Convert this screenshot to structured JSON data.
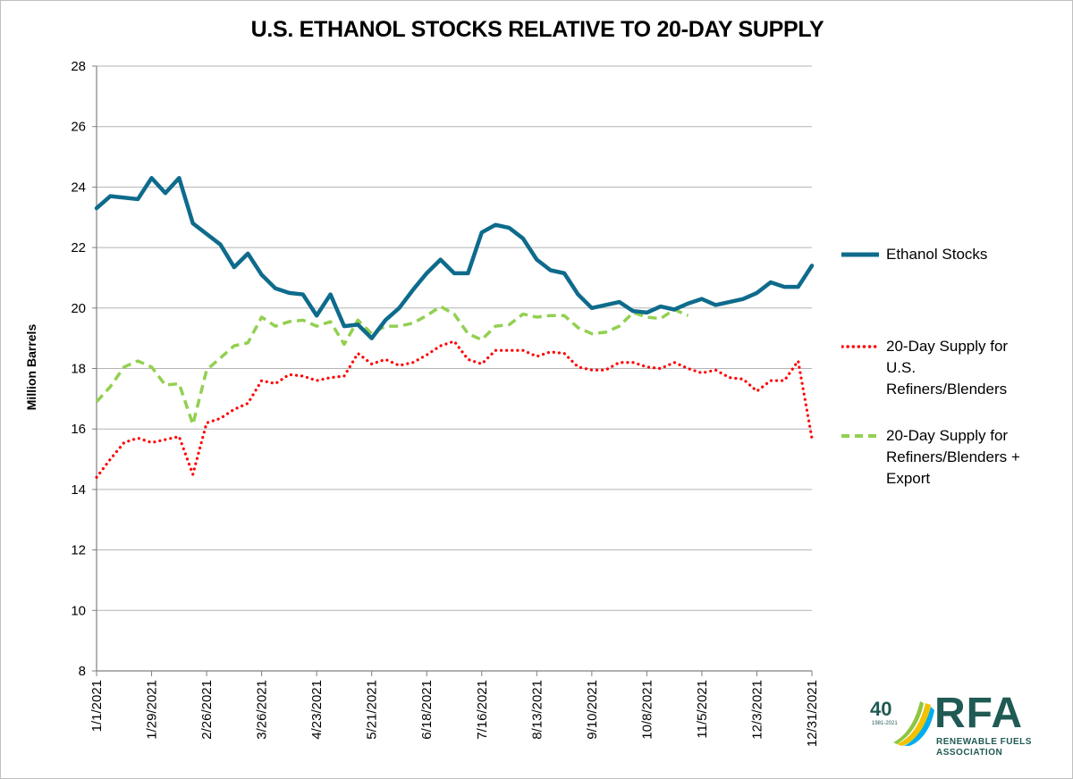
{
  "chart_data": {
    "type": "line",
    "title": "U.S. ETHANOL STOCKS RELATIVE TO 20-DAY SUPPLY",
    "ylabel": "Million Barrels",
    "xlabel": "",
    "ylim": [
      8,
      28
    ],
    "yticks": [
      8,
      10,
      12,
      14,
      16,
      18,
      20,
      22,
      24,
      26,
      28
    ],
    "grid": true,
    "legend_position": "right",
    "x": [
      "1/1/2021",
      "1/8/2021",
      "1/15/2021",
      "1/22/2021",
      "1/29/2021",
      "2/5/2021",
      "2/12/2021",
      "2/19/2021",
      "2/26/2021",
      "3/5/2021",
      "3/12/2021",
      "3/19/2021",
      "3/26/2021",
      "4/2/2021",
      "4/9/2021",
      "4/16/2021",
      "4/23/2021",
      "4/30/2021",
      "5/7/2021",
      "5/14/2021",
      "5/21/2021",
      "5/28/2021",
      "6/4/2021",
      "6/11/2021",
      "6/18/2021",
      "6/25/2021",
      "7/2/2021",
      "7/9/2021",
      "7/16/2021",
      "7/23/2021",
      "7/30/2021",
      "8/6/2021",
      "8/13/2021",
      "8/20/2021",
      "8/27/2021",
      "9/3/2021",
      "9/10/2021",
      "9/17/2021",
      "9/24/2021",
      "10/1/2021",
      "10/8/2021",
      "10/15/2021",
      "10/22/2021",
      "10/29/2021",
      "11/5/2021",
      "11/12/2021",
      "11/19/2021",
      "11/26/2021",
      "12/3/2021",
      "12/10/2021",
      "12/17/2021",
      "12/24/2021",
      "12/31/2021"
    ],
    "x_tick_labels": [
      "1/1/2021",
      "1/29/2021",
      "2/26/2021",
      "3/26/2021",
      "4/23/2021",
      "5/21/2021",
      "6/18/2021",
      "7/16/2021",
      "8/13/2021",
      "9/10/2021",
      "10/8/2021",
      "11/5/2021",
      "12/3/2021",
      "12/31/2021"
    ],
    "series": [
      {
        "name": "Ethanol Stocks",
        "color": "#0e6b8c",
        "style": "solid",
        "values": [
          23.3,
          23.7,
          23.65,
          23.6,
          24.3,
          23.8,
          24.3,
          22.8,
          22.45,
          22.1,
          21.35,
          21.8,
          21.1,
          20.65,
          20.5,
          20.45,
          19.75,
          20.45,
          19.4,
          19.45,
          19.0,
          19.6,
          20.0,
          20.6,
          21.15,
          21.6,
          21.15,
          21.15,
          22.5,
          22.75,
          22.65,
          22.3,
          21.6,
          21.25,
          21.15,
          20.45,
          20.0,
          20.1,
          20.2,
          19.9,
          19.85,
          20.05,
          19.95,
          20.15,
          20.3,
          20.1,
          20.2,
          20.3,
          20.5,
          20.85,
          20.7,
          20.7,
          21.4
        ]
      },
      {
        "name": "20-Day Supply for U.S. Refiners/Blenders",
        "color": "#ff0000",
        "style": "dotted",
        "values": [
          14.4,
          15.0,
          15.55,
          15.7,
          15.55,
          15.65,
          15.75,
          14.5,
          16.2,
          16.35,
          16.65,
          16.85,
          17.6,
          17.5,
          17.8,
          17.75,
          17.6,
          17.7,
          17.75,
          18.5,
          18.15,
          18.3,
          18.1,
          18.2,
          18.45,
          18.75,
          18.9,
          18.3,
          18.15,
          18.6,
          18.6,
          18.6,
          18.4,
          18.55,
          18.5,
          18.05,
          17.95,
          17.95,
          18.2,
          18.2,
          18.05,
          18.0,
          18.2,
          18.0,
          17.85,
          17.95,
          17.7,
          17.65,
          17.25,
          17.6,
          17.6,
          18.25,
          15.7
        ]
      },
      {
        "name": "20-Day Supply for Refiners/Blenders + Export",
        "color": "#92d050",
        "style": "dashed",
        "values": [
          16.9,
          17.4,
          18.05,
          18.25,
          18.05,
          17.45,
          17.5,
          16.15,
          17.95,
          18.35,
          18.75,
          18.85,
          19.7,
          19.4,
          19.55,
          19.6,
          19.4,
          19.55,
          18.8,
          19.6,
          19.15,
          19.4,
          19.4,
          19.5,
          19.75,
          20.05,
          19.8,
          19.15,
          18.95,
          19.4,
          19.45,
          19.8,
          19.7,
          19.75,
          19.75,
          19.35,
          19.15,
          19.2,
          19.4,
          19.85,
          19.7,
          19.65,
          19.95,
          19.75,
          null,
          null,
          null,
          null,
          null,
          null,
          null,
          null,
          null
        ]
      }
    ]
  },
  "legend": {
    "items": [
      {
        "label": "Ethanol Stocks"
      },
      {
        "label": "20-Day Supply for U.S. Refiners/Blenders"
      },
      {
        "label": "20-Day Supply for Refiners/Blenders + Export"
      }
    ]
  },
  "logo": {
    "number": "40",
    "years": "1981-2021",
    "name": "RFA",
    "subtitle_line1": "RENEWABLE FUELS",
    "subtitle_line2": "ASSOCIATION"
  }
}
